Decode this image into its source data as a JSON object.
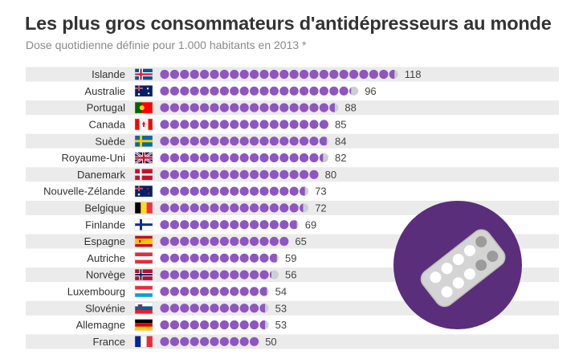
{
  "chart_data": {
    "type": "bar",
    "title": "Les plus gros consommateurs d'antidépresseurs au monde",
    "subtitle": "Dose quotidienne définie pour 1.000 habitants en 2013 *",
    "xlabel": "",
    "ylabel": "",
    "unit_per_dot": 5,
    "xlim": [
      0,
      120
    ],
    "categories": [
      "Islande",
      "Australie",
      "Portugal",
      "Canada",
      "Suède",
      "Royaume-Uni",
      "Danemark",
      "Nouvelle-Zélande",
      "Belgique",
      "Finlande",
      "Espagne",
      "Autriche",
      "Norvège",
      "Luxembourg",
      "Slovénie",
      "Allemagne",
      "France"
    ],
    "values": [
      118,
      96,
      88,
      85,
      84,
      82,
      80,
      73,
      72,
      69,
      65,
      59,
      56,
      54,
      53,
      53,
      50
    ],
    "flags": [
      "flag-iceland",
      "flag-australia",
      "flag-portugal",
      "flag-canada",
      "flag-sweden",
      "flag-uk",
      "flag-denmark",
      "flag-new-zealand",
      "flag-belgium",
      "flag-finland",
      "flag-spain",
      "flag-austria",
      "flag-norway",
      "flag-luxembourg",
      "flag-slovenia",
      "flag-germany",
      "flag-france"
    ],
    "colors": {
      "dot": "#8e56c0",
      "partial": "#cfcfcf",
      "row_band": "#ebebeb",
      "pill_circle": "#5a2e7a"
    },
    "decoration": "pill-blister-icon"
  }
}
